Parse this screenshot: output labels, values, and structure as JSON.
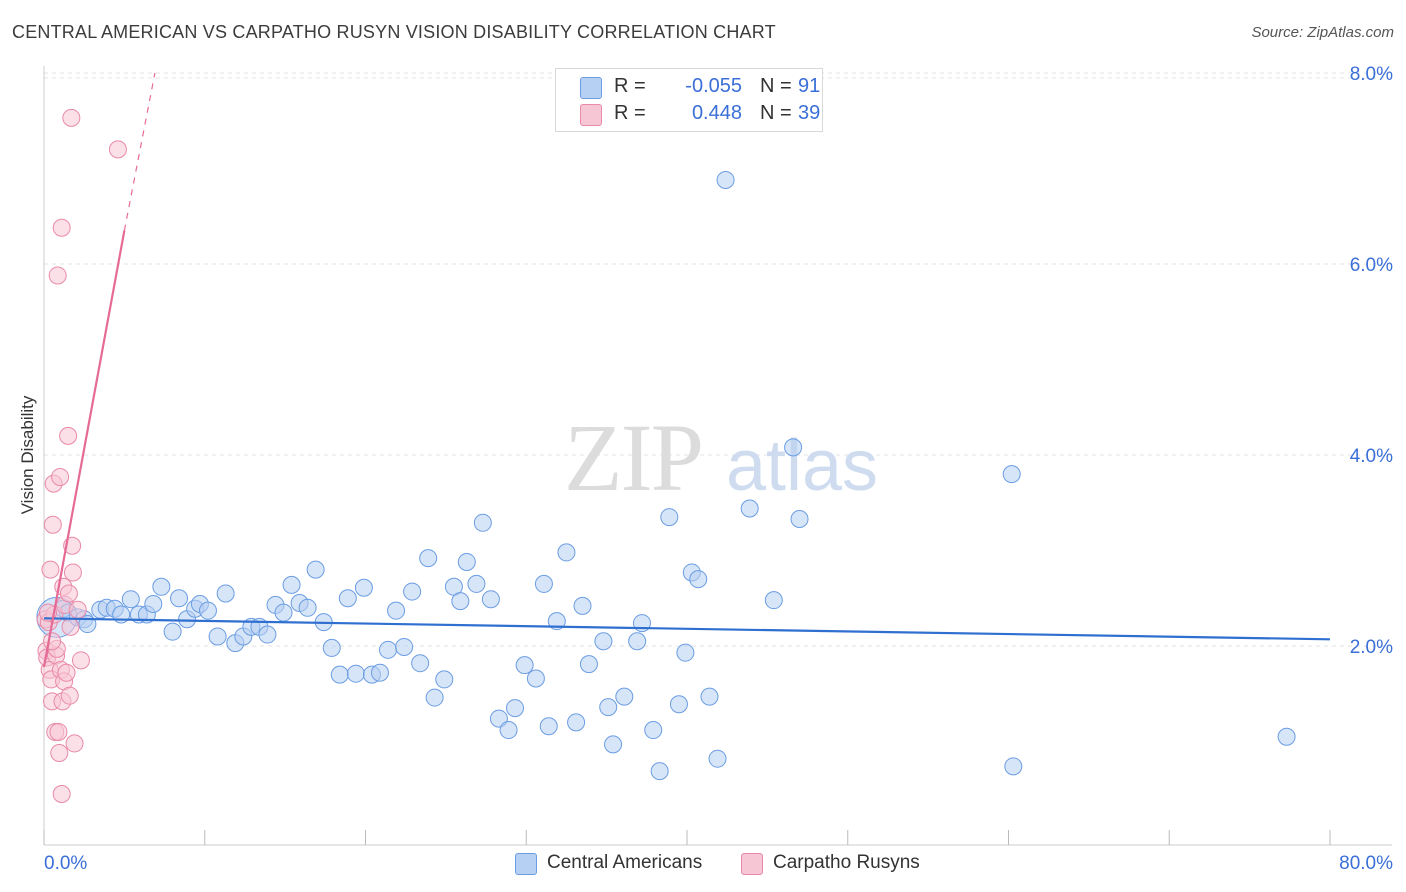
{
  "title": "CENTRAL AMERICAN VS CARPATHO RUSYN VISION DISABILITY CORRELATION CHART",
  "source": "Source: ZipAtlas.com",
  "watermark": {
    "zip": "ZIP",
    "atlas": "atlas"
  },
  "legend": {
    "rows": [
      {
        "r_label": "R =",
        "r_value": "-0.055",
        "n_label": "N =",
        "n_value": "91"
      },
      {
        "r_label": "R =",
        "r_value": "0.448",
        "n_label": "N =",
        "n_value": "39"
      }
    ]
  },
  "chart_data": {
    "type": "scatter",
    "title": "CENTRAL AMERICAN VS CARPATHO RUSYN VISION DISABILITY CORRELATION CHART",
    "xlabel": "",
    "ylabel": "Vision Disability",
    "xlim": [
      0,
      80
    ],
    "ylim": [
      0,
      8
    ],
    "x_tick_labels": [
      "0.0%",
      "80.0%"
    ],
    "y_ticks": [
      2,
      4,
      6,
      8
    ],
    "y_tick_labels": [
      "2.0%",
      "4.0%",
      "6.0%",
      "8.0%"
    ],
    "grid": true,
    "legend_position": "top-center",
    "colors": {
      "central": "#6b9de3",
      "central_fill": "#b6d0f3",
      "rusyn": "#e98aa8",
      "rusyn_fill": "#f7c6d5",
      "central_line": "#2e6fd0",
      "rusyn_line": "#e56b96"
    },
    "series": [
      {
        "name": "Central Americans",
        "r": -0.055,
        "n": 91,
        "trend": {
          "x0": 0,
          "y0": 2.29,
          "x1": 80,
          "y1": 2.07
        },
        "points": [
          {
            "x": 0.8,
            "y": 2.3,
            "big": true
          },
          {
            "x": 1.2,
            "y": 2.39
          },
          {
            "x": 1.5,
            "y": 2.35
          },
          {
            "x": 2.1,
            "y": 2.3
          },
          {
            "x": 2.5,
            "y": 2.28
          },
          {
            "x": 2.7,
            "y": 2.23
          },
          {
            "x": 3.5,
            "y": 2.38
          },
          {
            "x": 3.9,
            "y": 2.4
          },
          {
            "x": 4.4,
            "y": 2.39
          },
          {
            "x": 4.8,
            "y": 2.33
          },
          {
            "x": 5.4,
            "y": 2.49
          },
          {
            "x": 5.9,
            "y": 2.33
          },
          {
            "x": 6.4,
            "y": 2.33
          },
          {
            "x": 6.8,
            "y": 2.44
          },
          {
            "x": 7.3,
            "y": 2.62
          },
          {
            "x": 8.0,
            "y": 2.15
          },
          {
            "x": 8.4,
            "y": 2.5
          },
          {
            "x": 8.9,
            "y": 2.28
          },
          {
            "x": 9.4,
            "y": 2.39
          },
          {
            "x": 9.7,
            "y": 2.44
          },
          {
            "x": 10.2,
            "y": 2.37
          },
          {
            "x": 10.8,
            "y": 2.1
          },
          {
            "x": 11.3,
            "y": 2.55
          },
          {
            "x": 11.9,
            "y": 2.03
          },
          {
            "x": 12.4,
            "y": 2.1
          },
          {
            "x": 12.9,
            "y": 2.2
          },
          {
            "x": 13.4,
            "y": 2.2
          },
          {
            "x": 13.9,
            "y": 2.12
          },
          {
            "x": 14.4,
            "y": 2.43
          },
          {
            "x": 14.9,
            "y": 2.35
          },
          {
            "x": 15.4,
            "y": 2.64
          },
          {
            "x": 15.9,
            "y": 2.45
          },
          {
            "x": 16.4,
            "y": 2.4
          },
          {
            "x": 16.9,
            "y": 2.8
          },
          {
            "x": 17.4,
            "y": 2.25
          },
          {
            "x": 17.9,
            "y": 1.98
          },
          {
            "x": 18.4,
            "y": 1.7
          },
          {
            "x": 18.9,
            "y": 2.5
          },
          {
            "x": 19.4,
            "y": 1.71
          },
          {
            "x": 19.9,
            "y": 2.61
          },
          {
            "x": 20.4,
            "y": 1.7
          },
          {
            "x": 20.9,
            "y": 1.72
          },
          {
            "x": 21.4,
            "y": 1.96
          },
          {
            "x": 21.9,
            "y": 2.37
          },
          {
            "x": 22.4,
            "y": 1.99
          },
          {
            "x": 22.9,
            "y": 2.57
          },
          {
            "x": 23.4,
            "y": 1.82
          },
          {
            "x": 23.9,
            "y": 2.92
          },
          {
            "x": 24.3,
            "y": 1.46
          },
          {
            "x": 24.9,
            "y": 1.65
          },
          {
            "x": 25.5,
            "y": 2.62
          },
          {
            "x": 25.9,
            "y": 2.47
          },
          {
            "x": 26.3,
            "y": 2.88
          },
          {
            "x": 26.9,
            "y": 2.65
          },
          {
            "x": 27.3,
            "y": 3.29
          },
          {
            "x": 27.8,
            "y": 2.49
          },
          {
            "x": 28.3,
            "y": 1.24
          },
          {
            "x": 28.9,
            "y": 1.12
          },
          {
            "x": 29.3,
            "y": 1.35
          },
          {
            "x": 29.9,
            "y": 1.8
          },
          {
            "x": 30.6,
            "y": 1.66
          },
          {
            "x": 31.1,
            "y": 2.65
          },
          {
            "x": 31.4,
            "y": 1.16
          },
          {
            "x": 31.9,
            "y": 2.26
          },
          {
            "x": 32.5,
            "y": 2.98
          },
          {
            "x": 33.1,
            "y": 1.2
          },
          {
            "x": 33.5,
            "y": 2.42
          },
          {
            "x": 33.9,
            "y": 1.81
          },
          {
            "x": 34.8,
            "y": 2.05
          },
          {
            "x": 35.1,
            "y": 1.36
          },
          {
            "x": 35.4,
            "y": 0.97
          },
          {
            "x": 36.1,
            "y": 1.47
          },
          {
            "x": 36.9,
            "y": 2.05
          },
          {
            "x": 37.2,
            "y": 2.24
          },
          {
            "x": 37.9,
            "y": 1.12
          },
          {
            "x": 38.3,
            "y": 0.69
          },
          {
            "x": 38.9,
            "y": 3.35
          },
          {
            "x": 39.5,
            "y": 1.39
          },
          {
            "x": 39.9,
            "y": 1.93
          },
          {
            "x": 40.3,
            "y": 2.77
          },
          {
            "x": 40.7,
            "y": 2.7
          },
          {
            "x": 41.4,
            "y": 1.47
          },
          {
            "x": 41.9,
            "y": 0.82
          },
          {
            "x": 42.4,
            "y": 6.88
          },
          {
            "x": 43.9,
            "y": 3.44
          },
          {
            "x": 45.4,
            "y": 2.48
          },
          {
            "x": 46.6,
            "y": 4.08
          },
          {
            "x": 47.0,
            "y": 3.33
          },
          {
            "x": 60.2,
            "y": 3.8
          },
          {
            "x": 60.3,
            "y": 0.74
          },
          {
            "x": 77.3,
            "y": 1.05
          }
        ]
      },
      {
        "name": "Carpatho Rusyns",
        "r": 0.448,
        "n": 39,
        "trend": {
          "x0": 0,
          "y0": 1.78,
          "x1": 5.0,
          "y1": 6.35,
          "dash_to_x": 6.9,
          "dash_to_y": 8.0
        },
        "points": [
          {
            "x": 0.1,
            "y": 2.28
          },
          {
            "x": 0.15,
            "y": 1.95
          },
          {
            "x": 0.2,
            "y": 1.88
          },
          {
            "x": 0.3,
            "y": 2.25
          },
          {
            "x": 0.35,
            "y": 1.75
          },
          {
            "x": 0.4,
            "y": 2.8
          },
          {
            "x": 0.45,
            "y": 1.65
          },
          {
            "x": 0.5,
            "y": 1.42
          },
          {
            "x": 0.55,
            "y": 3.27
          },
          {
            "x": 0.6,
            "y": 3.7
          },
          {
            "x": 0.65,
            "y": 2.33
          },
          {
            "x": 0.7,
            "y": 1.1
          },
          {
            "x": 0.75,
            "y": 1.9
          },
          {
            "x": 0.8,
            "y": 1.97
          },
          {
            "x": 0.85,
            "y": 5.88
          },
          {
            "x": 0.9,
            "y": 1.1
          },
          {
            "x": 0.95,
            "y": 0.88
          },
          {
            "x": 1.0,
            "y": 3.77
          },
          {
            "x": 1.05,
            "y": 1.75
          },
          {
            "x": 1.1,
            "y": 0.45
          },
          {
            "x": 1.15,
            "y": 1.42
          },
          {
            "x": 1.1,
            "y": 6.38
          },
          {
            "x": 1.2,
            "y": 2.62
          },
          {
            "x": 1.25,
            "y": 1.63
          },
          {
            "x": 1.3,
            "y": 2.43
          },
          {
            "x": 1.4,
            "y": 1.72
          },
          {
            "x": 1.5,
            "y": 4.2
          },
          {
            "x": 1.55,
            "y": 2.55
          },
          {
            "x": 1.6,
            "y": 1.48
          },
          {
            "x": 1.65,
            "y": 2.2
          },
          {
            "x": 1.7,
            "y": 7.53
          },
          {
            "x": 1.75,
            "y": 3.05
          },
          {
            "x": 1.8,
            "y": 2.77
          },
          {
            "x": 1.9,
            "y": 0.98
          },
          {
            "x": 2.1,
            "y": 2.38
          },
          {
            "x": 2.3,
            "y": 1.85
          },
          {
            "x": 0.25,
            "y": 2.35
          },
          {
            "x": 0.5,
            "y": 2.05
          },
          {
            "x": 4.6,
            "y": 7.2
          }
        ]
      }
    ]
  },
  "bottom_legend": [
    {
      "label": "Central Americans"
    },
    {
      "label": "Carpatho Rusyns"
    }
  ]
}
